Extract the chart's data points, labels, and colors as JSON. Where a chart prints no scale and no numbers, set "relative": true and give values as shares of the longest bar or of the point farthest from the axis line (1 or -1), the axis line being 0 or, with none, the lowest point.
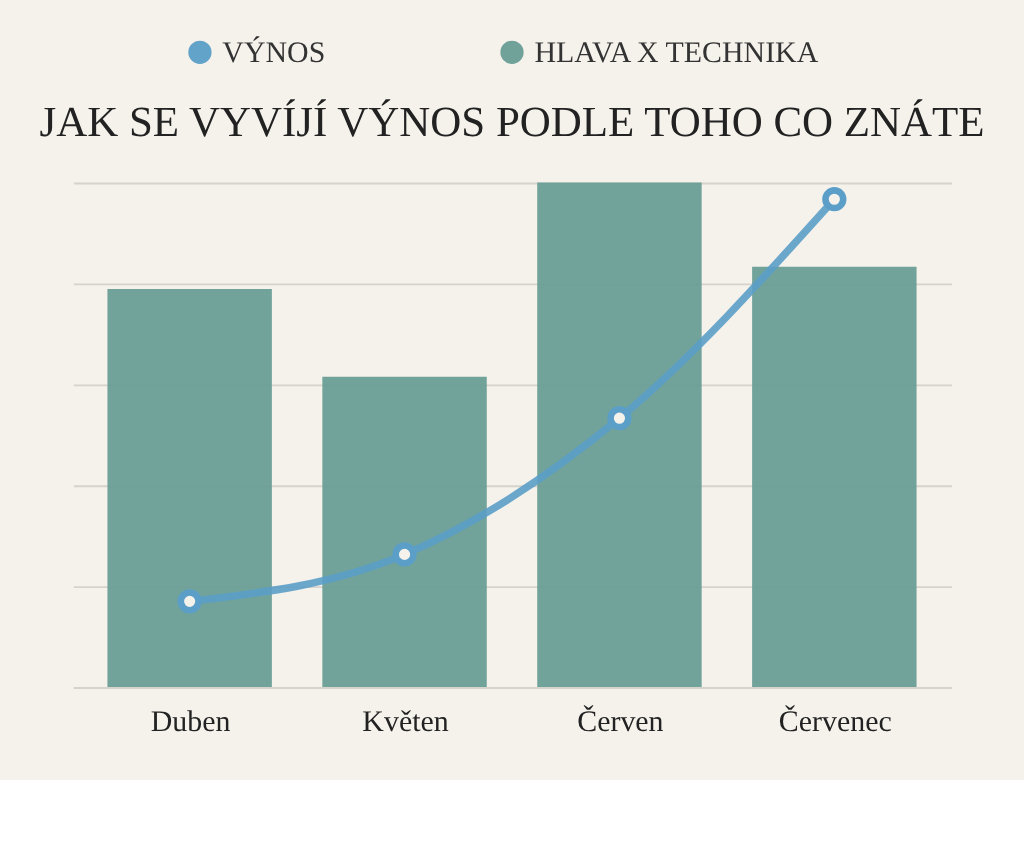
{
  "chart_data": {
    "type": "bar",
    "title": "JAK SE VYVÍJÍ VÝNOS PODLE TOHO CO ZNÁTE",
    "categories": [
      "Duben",
      "Květen",
      "Červen",
      "Červenec"
    ],
    "relative": true,
    "grid": "y",
    "legend": "top",
    "series": [
      {
        "name": "VÝNOS",
        "type": "line",
        "color": "#5b9fc8",
        "marker": "circle",
        "values": [
          0.17,
          0.263,
          0.533,
          0.967
        ]
      },
      {
        "name": "HLAVA X TECHNIKA",
        "color": "#6a9e96",
        "values": [
          0.789,
          0.615,
          1.0,
          0.833
        ]
      }
    ]
  }
}
